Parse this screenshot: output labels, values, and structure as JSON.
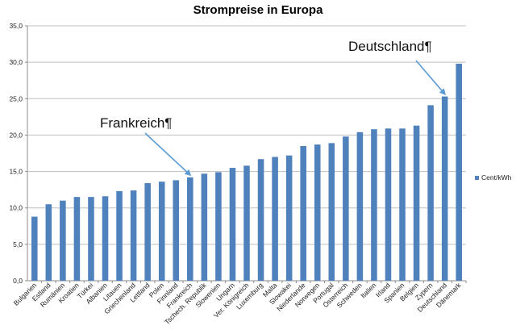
{
  "chart_data": {
    "type": "bar",
    "title": "Strompreise in Europa",
    "categories": [
      "Bulgarien",
      "Estland",
      "Rumänien",
      "Kroatien",
      "Türkei",
      "Albanien",
      "Litauen",
      "Griechenland",
      "Lettland",
      "Polen",
      "Finnland",
      "Frankreich",
      "Tschech. Republik",
      "Slowenien",
      "Ungarn",
      "Ver. Königreich",
      "Luxemburg",
      "Malta",
      "Slowakei",
      "Niederlande",
      "Norwegen",
      "Portugal",
      "Österreich",
      "Schweden",
      "Italien",
      "Irland",
      "Spanien",
      "Belgien",
      "Zypern",
      "Deutschland",
      "Dänemark"
    ],
    "series": [
      {
        "name": "Cent/kWh",
        "color": "#4f81bd",
        "values": [
          8.8,
          10.5,
          11.0,
          11.5,
          11.5,
          11.6,
          12.3,
          12.4,
          13.4,
          13.6,
          13.8,
          14.2,
          14.7,
          14.9,
          15.5,
          15.8,
          16.7,
          17.0,
          17.2,
          18.5,
          18.7,
          18.9,
          19.8,
          20.4,
          20.8,
          20.9,
          20.9,
          21.3,
          24.1,
          25.3,
          29.8
        ]
      }
    ],
    "ylim": [
      0,
      35
    ],
    "yticks": [
      "0,0",
      "5,0",
      "10,0",
      "15,0",
      "20,0",
      "25,0",
      "30,0",
      "35,0"
    ],
    "grid": true,
    "legend_position": "right",
    "annotations": [
      {
        "text": "Frankreich¶",
        "target_category": "Frankreich"
      },
      {
        "text": "Deutschland¶",
        "target_category": "Deutschland"
      }
    ],
    "arrow_color": "#5b9bd5"
  }
}
